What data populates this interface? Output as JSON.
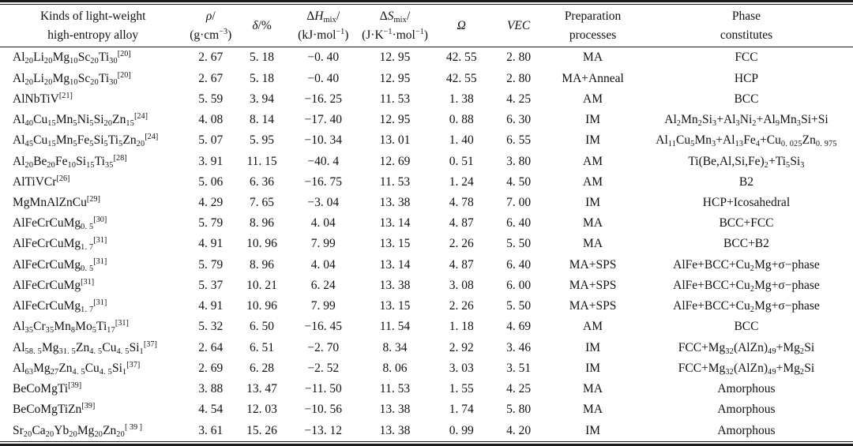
{
  "table": {
    "headers": {
      "alloy": [
        "Kinds of light-weight",
        "high-entropy alloy"
      ],
      "density": [
        "*ρ*/",
        "(g·cm^{−3})"
      ],
      "delta": [
        "*δ*/%"
      ],
      "enthalpy": [
        "Δ*H*_{mix}/",
        "(kJ·mol^{−1})"
      ],
      "entropy": [
        "Δ*S*_{mix}/",
        "(J·K^{−1}·mol^{−1})"
      ],
      "omega": [
        "*Ω*"
      ],
      "vec": [
        "*VEC*"
      ],
      "preparation": [
        "Preparation",
        "processes"
      ],
      "phase": [
        "Phase",
        "constitutes"
      ]
    },
    "rows": [
      [
        "Al_{20}Li_{20}Mg_{10}Sc_{20}Ti_{30}^{[20]}",
        "2. 67",
        "5. 18",
        "−0. 40",
        "12. 95",
        "42. 55",
        "2. 80",
        "MA",
        "FCC"
      ],
      [
        "Al_{20}Li_{20}Mg_{10}Sc_{20}Ti_{30}^{[20]}",
        "2. 67",
        "5. 18",
        "−0. 40",
        "12. 95",
        "42. 55",
        "2. 80",
        "MA+Anneal",
        "HCP"
      ],
      [
        "AlNbTiV^{[21]}",
        "5. 59",
        "3. 94",
        "−16. 25",
        "11. 53",
        "1. 38",
        "4. 25",
        "AM",
        "BCC"
      ],
      [
        "Al_{40}Cu_{15}Mn_{5}Ni_{5}Si_{20}Zn_{15}^{[24]}",
        "4. 08",
        "8. 14",
        "−17. 40",
        "12. 95",
        "0. 88",
        "6. 30",
        "IM",
        "Al_{2}Mn_{2}Si_{3}+Al_{3}Ni_{2}+Al_{9}Mn_{3}Si+Si"
      ],
      [
        "Al_{45}Cu_{15}Mn_{5}Fe_{5}Si_{5}Ti_{5}Zn_{20}^{[24]}",
        "5. 07",
        "5. 95",
        "−10. 34",
        "13. 01",
        "1. 40",
        "6. 55",
        "IM",
        "Al_{11}Cu_{5}Mn_{3}+Al_{13}Fe_{4}+Cu_{0. 025}Zn_{0. 975}"
      ],
      [
        "Al_{20}Be_{20}Fe_{10}Si_{15}Ti_{35}^{[28]}",
        "3. 91",
        "11. 15",
        "−40. 4",
        "12. 69",
        "0. 51",
        "3. 80",
        "AM",
        "Ti(Be,Al,Si,Fe)_{2}+Ti_{5}Si_{3}"
      ],
      [
        "AlTiVCr^{[26]}",
        "5. 06",
        "6. 36",
        "−16. 75",
        "11. 53",
        "1. 24",
        "4. 50",
        "AM",
        "B2"
      ],
      [
        "MgMnAlZnCu^{[29]}",
        "4. 29",
        "7. 65",
        "−3. 04",
        "13. 38",
        "4. 78",
        "7. 00",
        "IM",
        "HCP+Icosahedral"
      ],
      [
        "AlFeCrCuMg_{0. 5}^{[30]}",
        "5. 79",
        "8. 96",
        "4. 04",
        "13. 14",
        "4. 87",
        "6. 40",
        "MA",
        "BCC+FCC"
      ],
      [
        "AlFeCrCuMg_{1. 7}^{[31]}",
        "4. 91",
        "10. 96",
        "7. 99",
        "13. 15",
        "2. 26",
        "5. 50",
        "MA",
        "BCC+B2"
      ],
      [
        "AlFeCrCuMg_{0. 5}^{[31]}",
        "5. 79",
        "8. 96",
        "4. 04",
        "13. 14",
        "4. 87",
        "6. 40",
        "MA+SPS",
        "AlFe+BCC+Cu_{2}Mg+σ−phase"
      ],
      [
        "AlFeCrCuMg^{[31]}",
        "5. 37",
        "10. 21",
        "6. 24",
        "13. 38",
        "3. 08",
        "6. 00",
        "MA+SPS",
        "AlFe+BCC+Cu_{2}Mg+σ−phase"
      ],
      [
        "AlFeCrCuMg_{1. 7}^{[31]}",
        "4. 91",
        "10. 96",
        "7. 99",
        "13. 15",
        "2. 26",
        "5. 50",
        "MA+SPS",
        "AlFe+BCC+Cu_{2}Mg+σ−phase"
      ],
      [
        "Al_{35}Cr_{35}Mn_{8}Mo_{5}Ti_{17}^{[31]}",
        "5. 32",
        "6. 50",
        "−16. 45",
        "11. 54",
        "1. 18",
        "4. 69",
        "AM",
        "BCC"
      ],
      [
        "Al_{58. 5}Mg_{31. 5}Zn_{4. 5}Cu_{4. 5}Si_{1}^{[37]}",
        "2. 64",
        "6. 51",
        "−2. 70",
        "8. 34",
        "2. 92",
        "3. 46",
        "IM",
        "FCC+Mg_{32}(AlZn)_{49}+Mg_{2}Si"
      ],
      [
        "Al_{63}Mg_{27}Zn_{4. 5}Cu_{4. 5}Si_{1}^{[37]}",
        "2. 69",
        "6. 28",
        "−2. 52",
        "8. 06",
        "3. 03",
        "3. 51",
        "IM",
        "FCC+Mg_{32}(AlZn)_{49}+Mg_{2}Si"
      ],
      [
        "BeCoMgTi^{[39]}",
        "3. 88",
        "13. 47",
        "−11. 50",
        "11. 53",
        "1. 55",
        "4. 25",
        "MA",
        "Amorphous"
      ],
      [
        "BeCoMgTiZn^{[39]}",
        "4. 54",
        "12. 03",
        "−10. 56",
        "13. 38",
        "1. 74",
        "5. 80",
        "MA",
        "Amorphous"
      ],
      [
        "Sr_{20}Ca_{20}Yb_{20}Mg_{20}Zn_{20}^{[ 39 ]}",
        "3. 61",
        "15. 26",
        "−13. 12",
        "13. 38",
        "0. 99",
        "4. 20",
        "IM",
        "Amorphous"
      ]
    ]
  }
}
